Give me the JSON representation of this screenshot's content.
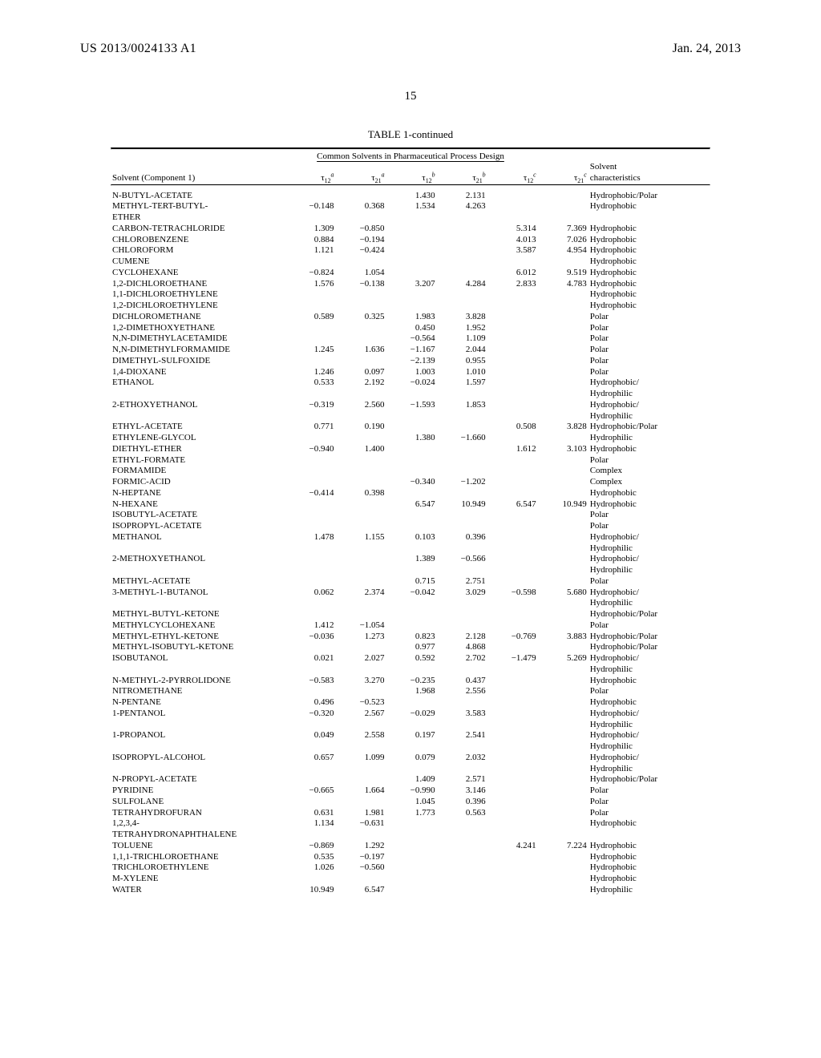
{
  "header": {
    "pub_number": "US 2013/0024133 A1",
    "pub_date": "Jan. 24, 2013",
    "page_number": "15"
  },
  "table": {
    "title": "TABLE 1-continued",
    "subtitle": "Common Solvents in Pharmaceutical Process Design",
    "columns": {
      "solvent_label_line1": "",
      "solvent_label_line2": "Solvent (Component 1)",
      "char_label_line1": "Solvent",
      "char_label_line2": "characteristics"
    },
    "col_headers": {
      "t12a": {
        "sym": "τ",
        "sub": "12",
        "sup": "a"
      },
      "t21a": {
        "sym": "τ",
        "sub": "21",
        "sup": "a"
      },
      "t12b": {
        "sym": "τ",
        "sub": "12",
        "sup": "b"
      },
      "t21b": {
        "sym": "τ",
        "sub": "21",
        "sup": "b"
      },
      "t12c": {
        "sym": "τ",
        "sub": "12",
        "sup": "c"
      },
      "t21c": {
        "sym": "τ",
        "sub": "21",
        "sup": "c"
      }
    },
    "rows": [
      {
        "name": "N-BUTYL-ACETATE",
        "t12a": "",
        "t21a": "",
        "t12b": "1.430",
        "t21b": "2.131",
        "t12c": "",
        "t21c": "",
        "char": "Hydrophobic/Polar"
      },
      {
        "name": "METHYL-TERT-BUTYL-",
        "t12a": "−0.148",
        "t21a": "0.368",
        "t12b": "1.534",
        "t21b": "4.263",
        "t12c": "",
        "t21c": "",
        "char": "Hydrophobic"
      },
      {
        "name": "ETHER",
        "t12a": "",
        "t21a": "",
        "t12b": "",
        "t21b": "",
        "t12c": "",
        "t21c": "",
        "char": ""
      },
      {
        "name": "CARBON-TETRACHLORIDE",
        "t12a": "1.309",
        "t21a": "−0.850",
        "t12b": "",
        "t21b": "",
        "t12c": "5.314",
        "t21c": "7.369",
        "char": "Hydrophobic"
      },
      {
        "name": "CHLOROBENZENE",
        "t12a": "0.884",
        "t21a": "−0.194",
        "t12b": "",
        "t21b": "",
        "t12c": "4.013",
        "t21c": "7.026",
        "char": "Hydrophobic"
      },
      {
        "name": "CHLOROFORM",
        "t12a": "1.121",
        "t21a": "−0.424",
        "t12b": "",
        "t21b": "",
        "t12c": "3.587",
        "t21c": "4.954",
        "char": "Hydrophobic"
      },
      {
        "name": "CUMENE",
        "t12a": "",
        "t21a": "",
        "t12b": "",
        "t21b": "",
        "t12c": "",
        "t21c": "",
        "char": "Hydrophobic"
      },
      {
        "name": "CYCLOHEXANE",
        "t12a": "−0.824",
        "t21a": "1.054",
        "t12b": "",
        "t21b": "",
        "t12c": "6.012",
        "t21c": "9.519",
        "char": "Hydrophobic"
      },
      {
        "name": "1,2-DICHLOROETHANE",
        "t12a": "1.576",
        "t21a": "−0.138",
        "t12b": "3.207",
        "t21b": "4.284",
        "t12c": "2.833",
        "t21c": "4.783",
        "char": "Hydrophobic"
      },
      {
        "name": "1,1-DICHLOROETHYLENE",
        "t12a": "",
        "t21a": "",
        "t12b": "",
        "t21b": "",
        "t12c": "",
        "t21c": "",
        "char": "Hydrophobic"
      },
      {
        "name": "1,2-DICHLOROETHYLENE",
        "t12a": "",
        "t21a": "",
        "t12b": "",
        "t21b": "",
        "t12c": "",
        "t21c": "",
        "char": "Hydrophobic"
      },
      {
        "name": "DICHLOROMETHANE",
        "t12a": "0.589",
        "t21a": "0.325",
        "t12b": "1.983",
        "t21b": "3.828",
        "t12c": "",
        "t21c": "",
        "char": "Polar"
      },
      {
        "name": "1,2-DIMETHOXYETHANE",
        "t12a": "",
        "t21a": "",
        "t12b": "0.450",
        "t21b": "1.952",
        "t12c": "",
        "t21c": "",
        "char": "Polar"
      },
      {
        "name": "N,N-DIMETHYLACETAMIDE",
        "t12a": "",
        "t21a": "",
        "t12b": "−0.564",
        "t21b": "1.109",
        "t12c": "",
        "t21c": "",
        "char": "Polar"
      },
      {
        "name": "N,N-DIMETHYLFORMAMIDE",
        "t12a": "1.245",
        "t21a": "1.636",
        "t12b": "−1.167",
        "t21b": "2.044",
        "t12c": "",
        "t21c": "",
        "char": "Polar"
      },
      {
        "name": "DIMETHYL-SULFOXIDE",
        "t12a": "",
        "t21a": "",
        "t12b": "−2.139",
        "t21b": "0.955",
        "t12c": "",
        "t21c": "",
        "char": "Polar"
      },
      {
        "name": "1,4-DIOXANE",
        "t12a": "1.246",
        "t21a": "0.097",
        "t12b": "1.003",
        "t21b": "1.010",
        "t12c": "",
        "t21c": "",
        "char": "Polar"
      },
      {
        "name": "ETHANOL",
        "t12a": "0.533",
        "t21a": "2.192",
        "t12b": "−0.024",
        "t21b": "1.597",
        "t12c": "",
        "t21c": "",
        "char": "Hydrophobic/"
      },
      {
        "name": "",
        "t12a": "",
        "t21a": "",
        "t12b": "",
        "t21b": "",
        "t12c": "",
        "t21c": "",
        "char": "Hydrophilic"
      },
      {
        "name": "2-ETHOXYETHANOL",
        "t12a": "−0.319",
        "t21a": "2.560",
        "t12b": "−1.593",
        "t21b": "1.853",
        "t12c": "",
        "t21c": "",
        "char": "Hydrophobic/"
      },
      {
        "name": "",
        "t12a": "",
        "t21a": "",
        "t12b": "",
        "t21b": "",
        "t12c": "",
        "t21c": "",
        "char": "Hydrophilic"
      },
      {
        "name": "ETHYL-ACETATE",
        "t12a": "0.771",
        "t21a": "0.190",
        "t12b": "",
        "t21b": "",
        "t12c": "0.508",
        "t21c": "3.828",
        "char": "Hydrophobic/Polar"
      },
      {
        "name": "ETHYLENE-GLYCOL",
        "t12a": "",
        "t21a": "",
        "t12b": "1.380",
        "t21b": "−1.660",
        "t12c": "",
        "t21c": "",
        "char": "Hydrophilic"
      },
      {
        "name": "DIETHYL-ETHER",
        "t12a": "−0.940",
        "t21a": "1.400",
        "t12b": "",
        "t21b": "",
        "t12c": "1.612",
        "t21c": "3.103",
        "char": "Hydrophobic"
      },
      {
        "name": "ETHYL-FORMATE",
        "t12a": "",
        "t21a": "",
        "t12b": "",
        "t21b": "",
        "t12c": "",
        "t21c": "",
        "char": "Polar"
      },
      {
        "name": "FORMAMIDE",
        "t12a": "",
        "t21a": "",
        "t12b": "",
        "t21b": "",
        "t12c": "",
        "t21c": "",
        "char": "Complex"
      },
      {
        "name": "FORMIC-ACID",
        "t12a": "",
        "t21a": "",
        "t12b": "−0.340",
        "t21b": "−1.202",
        "t12c": "",
        "t21c": "",
        "char": "Complex"
      },
      {
        "name": "N-HEPTANE",
        "t12a": "−0.414",
        "t21a": "0.398",
        "t12b": "",
        "t21b": "",
        "t12c": "",
        "t21c": "",
        "char": "Hydrophobic"
      },
      {
        "name": "N-HEXANE",
        "t12a": "",
        "t21a": "",
        "t12b": "6.547",
        "t21b": "10.949",
        "t12c": "6.547",
        "t21c": "10.949",
        "char": "Hydrophobic"
      },
      {
        "name": "ISOBUTYL-ACETATE",
        "t12a": "",
        "t21a": "",
        "t12b": "",
        "t21b": "",
        "t12c": "",
        "t21c": "",
        "char": "Polar"
      },
      {
        "name": "ISOPROPYL-ACETATE",
        "t12a": "",
        "t21a": "",
        "t12b": "",
        "t21b": "",
        "t12c": "",
        "t21c": "",
        "char": "Polar"
      },
      {
        "name": "METHANOL",
        "t12a": "1.478",
        "t21a": "1.155",
        "t12b": "0.103",
        "t21b": "0.396",
        "t12c": "",
        "t21c": "",
        "char": "Hydrophobic/"
      },
      {
        "name": "",
        "t12a": "",
        "t21a": "",
        "t12b": "",
        "t21b": "",
        "t12c": "",
        "t21c": "",
        "char": "Hydrophilic"
      },
      {
        "name": "2-METHOXYETHANOL",
        "t12a": "",
        "t21a": "",
        "t12b": "1.389",
        "t21b": "−0.566",
        "t12c": "",
        "t21c": "",
        "char": "Hydrophobic/"
      },
      {
        "name": "",
        "t12a": "",
        "t21a": "",
        "t12b": "",
        "t21b": "",
        "t12c": "",
        "t21c": "",
        "char": "Hydrophilic"
      },
      {
        "name": "METHYL-ACETATE",
        "t12a": "",
        "t21a": "",
        "t12b": "0.715",
        "t21b": "2.751",
        "t12c": "",
        "t21c": "",
        "char": "Polar"
      },
      {
        "name": "3-METHYL-1-BUTANOL",
        "t12a": "0.062",
        "t21a": "2.374",
        "t12b": "−0.042",
        "t21b": "3.029",
        "t12c": "−0.598",
        "t21c": "5.680",
        "char": "Hydrophobic/"
      },
      {
        "name": "",
        "t12a": "",
        "t21a": "",
        "t12b": "",
        "t21b": "",
        "t12c": "",
        "t21c": "",
        "char": "Hydrophilic"
      },
      {
        "name": "METHYL-BUTYL-KETONE",
        "t12a": "",
        "t21a": "",
        "t12b": "",
        "t21b": "",
        "t12c": "",
        "t21c": "",
        "char": "Hydrophobic/Polar"
      },
      {
        "name": "METHYLCYCLOHEXANE",
        "t12a": "1.412",
        "t21a": "−1.054",
        "t12b": "",
        "t21b": "",
        "t12c": "",
        "t21c": "",
        "char": "Polar"
      },
      {
        "name": "METHYL-ETHYL-KETONE",
        "t12a": "−0.036",
        "t21a": "1.273",
        "t12b": "0.823",
        "t21b": "2.128",
        "t12c": "−0.769",
        "t21c": "3.883",
        "char": "Hydrophobic/Polar"
      },
      {
        "name": "METHYL-ISOBUTYL-KETONE",
        "t12a": "",
        "t21a": "",
        "t12b": "0.977",
        "t21b": "4.868",
        "t12c": "",
        "t21c": "",
        "char": "Hydrophobic/Polar"
      },
      {
        "name": "ISOBUTANOL",
        "t12a": "0.021",
        "t21a": "2.027",
        "t12b": "0.592",
        "t21b": "2.702",
        "t12c": "−1.479",
        "t21c": "5.269",
        "char": "Hydrophobic/"
      },
      {
        "name": "",
        "t12a": "",
        "t21a": "",
        "t12b": "",
        "t21b": "",
        "t12c": "",
        "t21c": "",
        "char": "Hydrophilic"
      },
      {
        "name": "N-METHYL-2-PYRROLIDONE",
        "t12a": "−0.583",
        "t21a": "3.270",
        "t12b": "−0.235",
        "t21b": "0.437",
        "t12c": "",
        "t21c": "",
        "char": "Hydrophobic"
      },
      {
        "name": "NITROMETHANE",
        "t12a": "",
        "t21a": "",
        "t12b": "1.968",
        "t21b": "2.556",
        "t12c": "",
        "t21c": "",
        "char": "Polar"
      },
      {
        "name": "N-PENTANE",
        "t12a": "0.496",
        "t21a": "−0.523",
        "t12b": "",
        "t21b": "",
        "t12c": "",
        "t21c": "",
        "char": "Hydrophobic"
      },
      {
        "name": "1-PENTANOL",
        "t12a": "−0.320",
        "t21a": "2.567",
        "t12b": "−0.029",
        "t21b": "3.583",
        "t12c": "",
        "t21c": "",
        "char": "Hydrophobic/"
      },
      {
        "name": "",
        "t12a": "",
        "t21a": "",
        "t12b": "",
        "t21b": "",
        "t12c": "",
        "t21c": "",
        "char": "Hydrophilic"
      },
      {
        "name": "1-PROPANOL",
        "t12a": "0.049",
        "t21a": "2.558",
        "t12b": "0.197",
        "t21b": "2.541",
        "t12c": "",
        "t21c": "",
        "char": "Hydrophobic/"
      },
      {
        "name": "",
        "t12a": "",
        "t21a": "",
        "t12b": "",
        "t21b": "",
        "t12c": "",
        "t21c": "",
        "char": "Hydrophilic"
      },
      {
        "name": "ISOPROPYL-ALCOHOL",
        "t12a": "0.657",
        "t21a": "1.099",
        "t12b": "0.079",
        "t21b": "2.032",
        "t12c": "",
        "t21c": "",
        "char": "Hydrophobic/"
      },
      {
        "name": "",
        "t12a": "",
        "t21a": "",
        "t12b": "",
        "t21b": "",
        "t12c": "",
        "t21c": "",
        "char": "Hydrophilic"
      },
      {
        "name": "N-PROPYL-ACETATE",
        "t12a": "",
        "t21a": "",
        "t12b": "1.409",
        "t21b": "2.571",
        "t12c": "",
        "t21c": "",
        "char": "Hydrophobic/Polar"
      },
      {
        "name": "PYRIDINE",
        "t12a": "−0.665",
        "t21a": "1.664",
        "t12b": "−0.990",
        "t21b": "3.146",
        "t12c": "",
        "t21c": "",
        "char": "Polar"
      },
      {
        "name": "SULFOLANE",
        "t12a": "",
        "t21a": "",
        "t12b": "1.045",
        "t21b": "0.396",
        "t12c": "",
        "t21c": "",
        "char": "Polar"
      },
      {
        "name": "TETRAHYDROFURAN",
        "t12a": "0.631",
        "t21a": "1.981",
        "t12b": "1.773",
        "t21b": "0.563",
        "t12c": "",
        "t21c": "",
        "char": "Polar"
      },
      {
        "name": "1,2,3,4-",
        "t12a": "1.134",
        "t21a": "−0.631",
        "t12b": "",
        "t21b": "",
        "t12c": "",
        "t21c": "",
        "char": "Hydrophobic"
      },
      {
        "name": "TETRAHYDRONAPHTHALENE",
        "t12a": "",
        "t21a": "",
        "t12b": "",
        "t21b": "",
        "t12c": "",
        "t21c": "",
        "char": ""
      },
      {
        "name": "TOLUENE",
        "t12a": "−0.869",
        "t21a": "1.292",
        "t12b": "",
        "t21b": "",
        "t12c": "4.241",
        "t21c": "7.224",
        "char": "Hydrophobic"
      },
      {
        "name": "1,1,1-TRICHLOROETHANE",
        "t12a": "0.535",
        "t21a": "−0.197",
        "t12b": "",
        "t21b": "",
        "t12c": "",
        "t21c": "",
        "char": "Hydrophobic"
      },
      {
        "name": "TRICHLOROETHYLENE",
        "t12a": "1.026",
        "t21a": "−0.560",
        "t12b": "",
        "t21b": "",
        "t12c": "",
        "t21c": "",
        "char": "Hydrophobic"
      },
      {
        "name": "M-XYLENE",
        "t12a": "",
        "t21a": "",
        "t12b": "",
        "t21b": "",
        "t12c": "",
        "t21c": "",
        "char": "Hydrophobic"
      },
      {
        "name": "WATER",
        "t12a": "10.949",
        "t21a": "6.547",
        "t12b": "",
        "t21b": "",
        "t12c": "",
        "t21c": "",
        "char": "Hydrophilic"
      }
    ]
  }
}
